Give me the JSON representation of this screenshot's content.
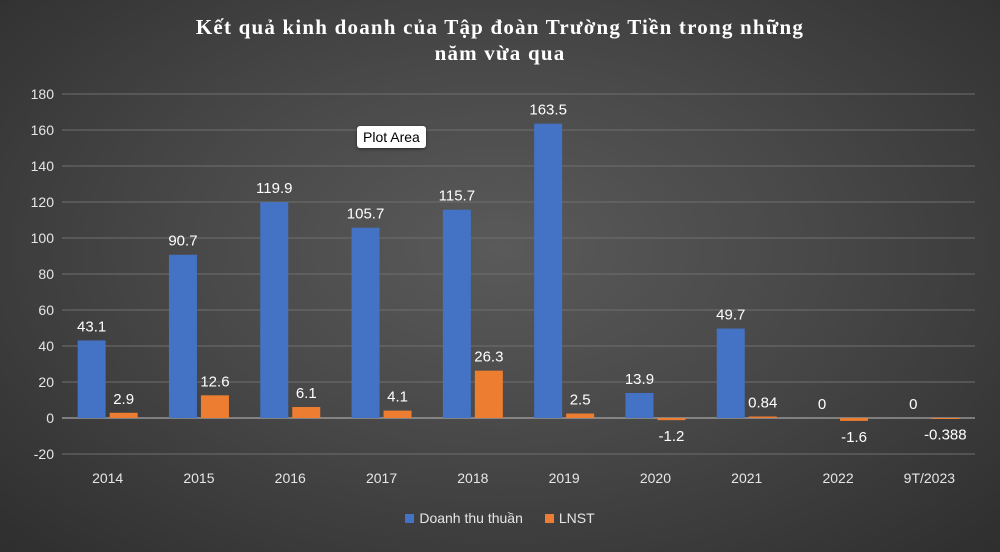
{
  "title_line1": "Kết quả kinh doanh của  Tập đoàn Trường Tiền trong những",
  "title_line2": "năm vừa qua",
  "plot_area_tooltip": "Plot Area",
  "chart_data": {
    "type": "bar",
    "categories": [
      "2014",
      "2015",
      "2016",
      "2017",
      "2018",
      "2019",
      "2020",
      "2021",
      "2022",
      "9T/2023"
    ],
    "series": [
      {
        "name": "Doanh thu thuần",
        "color": "#4472c4",
        "values": [
          43.1,
          90.7,
          119.9,
          105.7,
          115.7,
          163.5,
          13.9,
          49.7,
          0,
          0
        ],
        "labels": [
          "43.1",
          "90.7",
          "119.9",
          "105.7",
          "115.7",
          "163.5",
          "13.9",
          "49.7",
          "0",
          "0"
        ]
      },
      {
        "name": "LNST",
        "color": "#ed7d31",
        "values": [
          2.9,
          12.6,
          6.1,
          4.1,
          26.3,
          2.5,
          -1.2,
          0.84,
          -1.6,
          -0.388
        ],
        "labels": [
          "2.9",
          "12.6",
          "6.1",
          "4.1",
          "26.3",
          "2.5",
          "-1.2",
          "0.84",
          "-1.6",
          "-0.388"
        ]
      }
    ],
    "ylim": [
      -20,
      180
    ],
    "yticks": [
      "-20",
      "0",
      "20",
      "40",
      "60",
      "80",
      "100",
      "120",
      "140",
      "160",
      "180"
    ],
    "grid": true,
    "legend_position": "bottom",
    "xlabel": "",
    "ylabel": ""
  }
}
